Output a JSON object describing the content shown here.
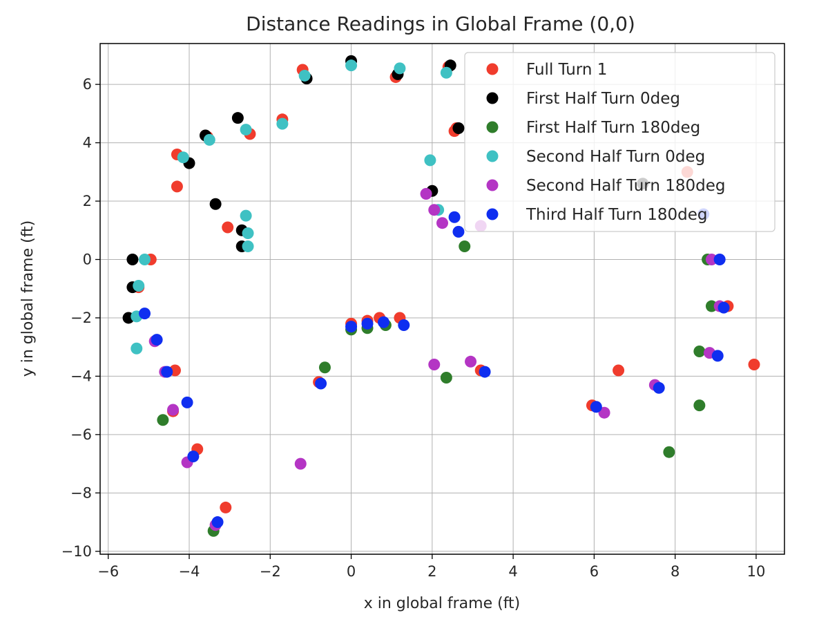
{
  "chart_data": {
    "type": "scatter",
    "title": "Distance Readings in Global Frame (0,0)",
    "xlabel": "x in global frame (ft)",
    "ylabel": "y in global frame (ft)",
    "xlim": [
      -6.2,
      10.7
    ],
    "ylim": [
      -10.1,
      7.4
    ],
    "xticks": [
      -6,
      -4,
      -2,
      0,
      2,
      4,
      6,
      8,
      10
    ],
    "yticks": [
      -10,
      -8,
      -6,
      -4,
      -2,
      0,
      2,
      4,
      6
    ],
    "xtick_labels": [
      "−6",
      "−4",
      "−2",
      "0",
      "2",
      "4",
      "6",
      "8",
      "10"
    ],
    "ytick_labels": [
      "−10",
      "−8",
      "−6",
      "−4",
      "−2",
      "0",
      "2",
      "4",
      "6"
    ],
    "grid": true,
    "legend_position": "top-right",
    "series": [
      {
        "name": "Full Turn 1",
        "color": "#f03c2d",
        "points": [
          [
            -1.2,
            6.5
          ],
          [
            1.1,
            6.25
          ],
          [
            -1.7,
            4.8
          ],
          [
            -2.5,
            4.3
          ],
          [
            -3.55,
            4.2
          ],
          [
            -4.3,
            3.6
          ],
          [
            -4.3,
            2.5
          ],
          [
            -3.05,
            1.1
          ],
          [
            -4.95,
            0.0
          ],
          [
            -5.25,
            -0.95
          ],
          [
            -4.35,
            -3.8
          ],
          [
            -4.4,
            -5.2
          ],
          [
            -3.8,
            -6.5
          ],
          [
            -3.1,
            -8.5
          ],
          [
            0.0,
            -2.2
          ],
          [
            0.4,
            -2.1
          ],
          [
            0.7,
            -2.0
          ],
          [
            1.2,
            -2.0
          ],
          [
            -0.8,
            -4.2
          ],
          [
            3.2,
            -3.8
          ],
          [
            2.55,
            4.4
          ],
          [
            6.6,
            -3.8
          ],
          [
            5.95,
            -5.0
          ],
          [
            8.3,
            3.0
          ],
          [
            9.3,
            -1.6
          ],
          [
            9.95,
            -3.6
          ],
          [
            2.4,
            6.6
          ],
          [
            2.6,
            4.5
          ]
        ]
      },
      {
        "name": "First Half Turn 0deg",
        "color": "#000000",
        "points": [
          [
            0.0,
            6.8
          ],
          [
            -1.1,
            6.2
          ],
          [
            1.15,
            6.35
          ],
          [
            2.45,
            6.65
          ],
          [
            -2.8,
            4.85
          ],
          [
            -3.6,
            4.25
          ],
          [
            -4.0,
            3.3
          ],
          [
            -3.35,
            1.9
          ],
          [
            -2.7,
            1.0
          ],
          [
            -2.7,
            0.45
          ],
          [
            -5.4,
            0.0
          ],
          [
            -5.4,
            -0.95
          ],
          [
            -5.5,
            -2.0
          ],
          [
            2.0,
            2.35
          ],
          [
            2.65,
            4.5
          ],
          [
            7.2,
            2.6
          ]
        ]
      },
      {
        "name": "First Half Turn 180deg",
        "color": "#2f7d2b",
        "points": [
          [
            -4.65,
            -5.5
          ],
          [
            -3.4,
            -9.3
          ],
          [
            -0.65,
            -3.7
          ],
          [
            0.0,
            -2.4
          ],
          [
            0.4,
            -2.35
          ],
          [
            0.85,
            -2.25
          ],
          [
            2.35,
            -4.05
          ],
          [
            2.8,
            0.45
          ],
          [
            8.8,
            0.0
          ],
          [
            8.9,
            -1.6
          ],
          [
            8.6,
            -3.15
          ],
          [
            8.6,
            -5.0
          ],
          [
            7.85,
            -6.6
          ]
        ]
      },
      {
        "name": "Second Half Turn 0deg",
        "color": "#3fc1c3",
        "points": [
          [
            0.0,
            6.65
          ],
          [
            1.2,
            6.55
          ],
          [
            -1.15,
            6.3
          ],
          [
            2.35,
            6.4
          ],
          [
            -1.7,
            4.65
          ],
          [
            -2.6,
            4.45
          ],
          [
            -3.5,
            4.1
          ],
          [
            -4.15,
            3.5
          ],
          [
            -2.6,
            1.5
          ],
          [
            -2.55,
            0.9
          ],
          [
            -2.55,
            0.45
          ],
          [
            -5.1,
            0.0
          ],
          [
            -5.25,
            -0.9
          ],
          [
            -5.3,
            -1.95
          ],
          [
            -5.3,
            -3.05
          ],
          [
            1.95,
            3.4
          ],
          [
            2.15,
            1.7
          ]
        ]
      },
      {
        "name": "Second Half Turn 180deg",
        "color": "#b435c4",
        "points": [
          [
            -4.85,
            -2.8
          ],
          [
            -4.6,
            -3.85
          ],
          [
            -4.4,
            -5.15
          ],
          [
            -4.05,
            -6.95
          ],
          [
            -3.35,
            -9.1
          ],
          [
            -1.25,
            -7.0
          ],
          [
            2.05,
            -3.6
          ],
          [
            1.85,
            2.25
          ],
          [
            2.05,
            1.7
          ],
          [
            2.25,
            1.25
          ],
          [
            2.95,
            -3.5
          ],
          [
            3.2,
            1.15
          ],
          [
            6.25,
            -5.25
          ],
          [
            7.5,
            -4.3
          ],
          [
            8.9,
            0.0
          ],
          [
            8.85,
            -3.2
          ],
          [
            9.1,
            -1.6
          ]
        ]
      },
      {
        "name": "Third Half Turn 180deg",
        "color": "#0f2ef0",
        "points": [
          [
            -5.1,
            -1.85
          ],
          [
            -4.8,
            -2.75
          ],
          [
            -4.55,
            -3.85
          ],
          [
            -4.05,
            -4.9
          ],
          [
            -3.9,
            -6.75
          ],
          [
            -3.3,
            -9.0
          ],
          [
            -0.75,
            -4.25
          ],
          [
            0.0,
            -2.3
          ],
          [
            0.4,
            -2.2
          ],
          [
            0.8,
            -2.15
          ],
          [
            1.3,
            -2.25
          ],
          [
            3.3,
            -3.85
          ],
          [
            2.55,
            1.45
          ],
          [
            2.65,
            0.95
          ],
          [
            6.05,
            -5.05
          ],
          [
            7.6,
            -4.4
          ],
          [
            9.1,
            0.0
          ],
          [
            9.2,
            -1.65
          ],
          [
            9.05,
            -3.3
          ],
          [
            8.7,
            1.55
          ]
        ]
      }
    ]
  }
}
